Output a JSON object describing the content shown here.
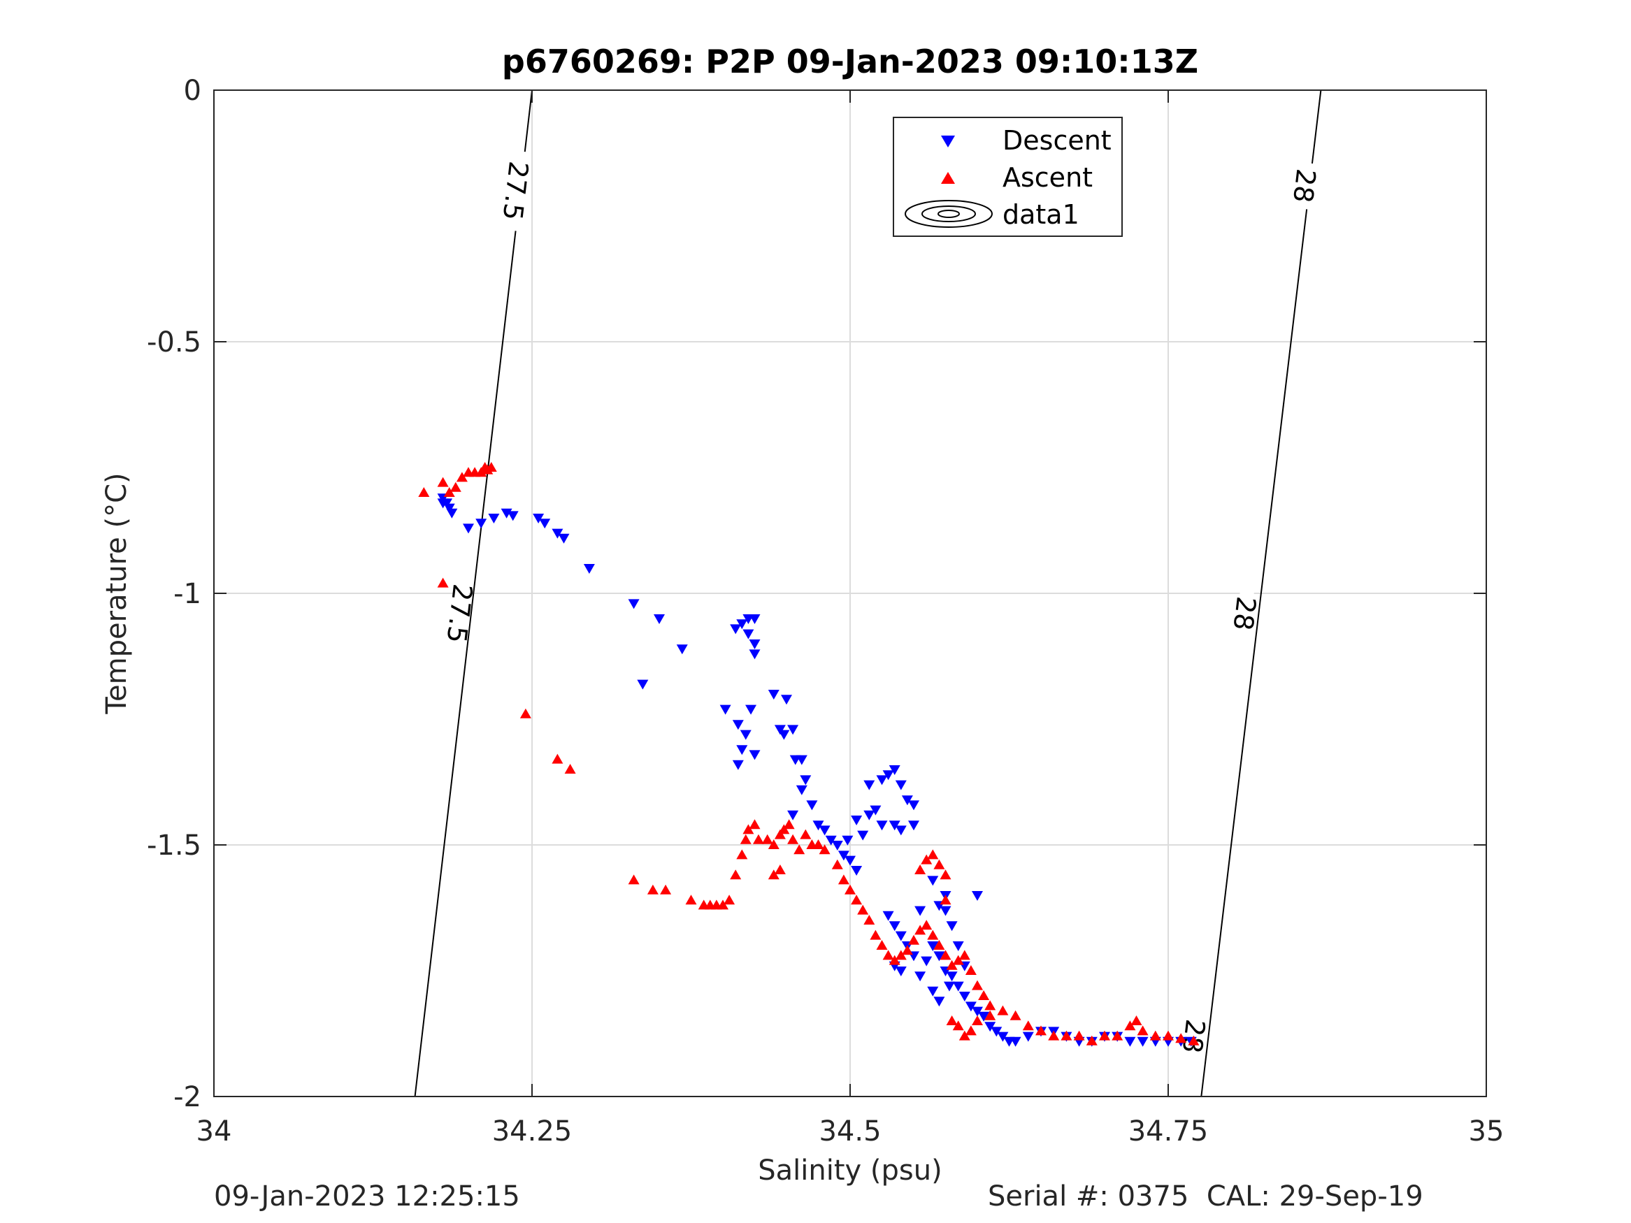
{
  "chart_data": {
    "type": "scatter",
    "title": "p6760269: P2P 09-Jan-2023 09:10:13Z",
    "xlabel": "Salinity (psu)",
    "ylabel": "Temperature (°C)",
    "xlim": [
      34,
      35
    ],
    "ylim": [
      -2,
      0
    ],
    "x_ticks": [
      34,
      34.25,
      34.5,
      34.75,
      35
    ],
    "x_tick_labels": [
      "34",
      "34.25",
      "34.5",
      "34.75",
      "35"
    ],
    "y_ticks": [
      0,
      -0.5,
      -1,
      -1.5,
      -2
    ],
    "y_tick_labels": [
      "0",
      "-0.5",
      "-1",
      "-1.5",
      "-2"
    ],
    "grid": true,
    "legend_position": "top-right",
    "legend_entries": [
      "Descent",
      "Ascent",
      "data1"
    ],
    "colors": {
      "descent": "#0000ff",
      "ascent": "#ff0000",
      "contour": "#000000",
      "grid": "#dcdcdc"
    },
    "contours": [
      {
        "level_label": "27.5",
        "points": [
          [
            34.158,
            -2.0
          ],
          [
            34.25,
            0.0
          ]
        ],
        "label_positions": [
          [
            34.237,
            -0.2
          ],
          [
            34.193,
            -1.04
          ]
        ]
      },
      {
        "level_label": "28",
        "points": [
          [
            34.776,
            -2.0
          ],
          [
            34.87,
            0.0
          ]
        ],
        "label_positions": [
          [
            34.857,
            -0.19
          ],
          [
            34.81,
            -1.04
          ],
          [
            34.77,
            -1.88
          ]
        ]
      }
    ],
    "series": [
      {
        "name": "Descent",
        "marker": "triangle-down",
        "points": [
          [
            34.18,
            -0.81
          ],
          [
            34.183,
            -0.82
          ],
          [
            34.185,
            -0.83
          ],
          [
            34.187,
            -0.84
          ],
          [
            34.18,
            -0.82
          ],
          [
            34.2,
            -0.87
          ],
          [
            34.21,
            -0.86
          ],
          [
            34.22,
            -0.85
          ],
          [
            34.23,
            -0.84
          ],
          [
            34.235,
            -0.845
          ],
          [
            34.255,
            -0.85
          ],
          [
            34.26,
            -0.86
          ],
          [
            34.27,
            -0.88
          ],
          [
            34.275,
            -0.89
          ],
          [
            34.295,
            -0.95
          ],
          [
            34.33,
            -1.02
          ],
          [
            34.35,
            -1.05
          ],
          [
            34.337,
            -1.18
          ],
          [
            34.368,
            -1.11
          ],
          [
            34.41,
            -1.07
          ],
          [
            34.415,
            -1.06
          ],
          [
            34.42,
            -1.05
          ],
          [
            34.425,
            -1.05
          ],
          [
            34.42,
            -1.08
          ],
          [
            34.425,
            -1.1
          ],
          [
            34.425,
            -1.12
          ],
          [
            34.402,
            -1.23
          ],
          [
            34.412,
            -1.26
          ],
          [
            34.418,
            -1.28
          ],
          [
            34.422,
            -1.23
          ],
          [
            34.415,
            -1.31
          ],
          [
            34.425,
            -1.32
          ],
          [
            34.412,
            -1.34
          ],
          [
            34.44,
            -1.2
          ],
          [
            34.45,
            -1.21
          ],
          [
            34.445,
            -1.27
          ],
          [
            34.448,
            -1.28
          ],
          [
            34.455,
            -1.27
          ],
          [
            34.457,
            -1.33
          ],
          [
            34.462,
            -1.33
          ],
          [
            34.462,
            -1.39
          ],
          [
            34.465,
            -1.37
          ],
          [
            34.47,
            -1.42
          ],
          [
            34.455,
            -1.44
          ],
          [
            34.475,
            -1.46
          ],
          [
            34.48,
            -1.47
          ],
          [
            34.49,
            -1.5
          ],
          [
            34.495,
            -1.52
          ],
          [
            34.5,
            -1.53
          ],
          [
            34.505,
            -1.55
          ],
          [
            34.51,
            -1.48
          ],
          [
            34.498,
            -1.49
          ],
          [
            34.485,
            -1.49
          ],
          [
            34.505,
            -1.45
          ],
          [
            34.515,
            -1.44
          ],
          [
            34.52,
            -1.43
          ],
          [
            34.525,
            -1.46
          ],
          [
            34.535,
            -1.46
          ],
          [
            34.54,
            -1.47
          ],
          [
            34.55,
            -1.46
          ],
          [
            34.515,
            -1.38
          ],
          [
            34.525,
            -1.37
          ],
          [
            34.53,
            -1.36
          ],
          [
            34.535,
            -1.35
          ],
          [
            34.54,
            -1.38
          ],
          [
            34.545,
            -1.41
          ],
          [
            34.55,
            -1.42
          ],
          [
            34.53,
            -1.64
          ],
          [
            34.535,
            -1.66
          ],
          [
            34.54,
            -1.68
          ],
          [
            34.545,
            -1.7
          ],
          [
            34.55,
            -1.72
          ],
          [
            34.535,
            -1.74
          ],
          [
            34.54,
            -1.75
          ],
          [
            34.555,
            -1.76
          ],
          [
            34.56,
            -1.73
          ],
          [
            34.565,
            -1.7
          ],
          [
            34.57,
            -1.72
          ],
          [
            34.575,
            -1.75
          ],
          [
            34.58,
            -1.76
          ],
          [
            34.585,
            -1.78
          ],
          [
            34.59,
            -1.8
          ],
          [
            34.595,
            -1.82
          ],
          [
            34.6,
            -1.83
          ],
          [
            34.605,
            -1.84
          ],
          [
            34.61,
            -1.86
          ],
          [
            34.615,
            -1.87
          ],
          [
            34.62,
            -1.88
          ],
          [
            34.625,
            -1.89
          ],
          [
            34.63,
            -1.89
          ],
          [
            34.64,
            -1.88
          ],
          [
            34.65,
            -1.87
          ],
          [
            34.66,
            -1.87
          ],
          [
            34.67,
            -1.88
          ],
          [
            34.68,
            -1.89
          ],
          [
            34.69,
            -1.89
          ],
          [
            34.7,
            -1.88
          ],
          [
            34.71,
            -1.88
          ],
          [
            34.72,
            -1.89
          ],
          [
            34.73,
            -1.89
          ],
          [
            34.74,
            -1.89
          ],
          [
            34.75,
            -1.89
          ],
          [
            34.76,
            -1.89
          ],
          [
            34.768,
            -1.89
          ],
          [
            34.57,
            -1.62
          ],
          [
            34.575,
            -1.63
          ],
          [
            34.58,
            -1.66
          ],
          [
            34.585,
            -1.7
          ],
          [
            34.59,
            -1.74
          ],
          [
            34.6,
            -1.6
          ],
          [
            34.565,
            -1.57
          ],
          [
            34.575,
            -1.6
          ],
          [
            34.555,
            -1.63
          ],
          [
            34.565,
            -1.79
          ],
          [
            34.57,
            -1.81
          ],
          [
            34.578,
            -1.78
          ]
        ]
      },
      {
        "name": "Ascent",
        "marker": "triangle-up",
        "points": [
          [
            34.165,
            -0.8
          ],
          [
            34.18,
            -0.78
          ],
          [
            34.185,
            -0.8
          ],
          [
            34.19,
            -0.79
          ],
          [
            34.195,
            -0.77
          ],
          [
            34.2,
            -0.76
          ],
          [
            34.205,
            -0.76
          ],
          [
            34.21,
            -0.76
          ],
          [
            34.213,
            -0.75
          ],
          [
            34.215,
            -0.755
          ],
          [
            34.218,
            -0.75
          ],
          [
            34.18,
            -0.98
          ],
          [
            34.245,
            -1.24
          ],
          [
            34.27,
            -1.33
          ],
          [
            34.28,
            -1.35
          ],
          [
            34.33,
            -1.57
          ],
          [
            34.345,
            -1.59
          ],
          [
            34.355,
            -1.59
          ],
          [
            34.375,
            -1.61
          ],
          [
            34.385,
            -1.62
          ],
          [
            34.39,
            -1.62
          ],
          [
            34.395,
            -1.62
          ],
          [
            34.4,
            -1.62
          ],
          [
            34.405,
            -1.61
          ],
          [
            34.41,
            -1.56
          ],
          [
            34.415,
            -1.52
          ],
          [
            34.418,
            -1.49
          ],
          [
            34.42,
            -1.47
          ],
          [
            34.425,
            -1.46
          ],
          [
            34.428,
            -1.49
          ],
          [
            34.435,
            -1.49
          ],
          [
            34.44,
            -1.5
          ],
          [
            34.445,
            -1.48
          ],
          [
            34.448,
            -1.47
          ],
          [
            34.452,
            -1.46
          ],
          [
            34.445,
            -1.55
          ],
          [
            34.44,
            -1.56
          ],
          [
            34.455,
            -1.49
          ],
          [
            34.46,
            -1.51
          ],
          [
            34.465,
            -1.48
          ],
          [
            34.47,
            -1.5
          ],
          [
            34.475,
            -1.5
          ],
          [
            34.48,
            -1.51
          ],
          [
            34.49,
            -1.54
          ],
          [
            34.495,
            -1.57
          ],
          [
            34.5,
            -1.59
          ],
          [
            34.505,
            -1.61
          ],
          [
            34.51,
            -1.63
          ],
          [
            34.515,
            -1.65
          ],
          [
            34.52,
            -1.68
          ],
          [
            34.525,
            -1.7
          ],
          [
            34.53,
            -1.72
          ],
          [
            34.535,
            -1.73
          ],
          [
            34.54,
            -1.72
          ],
          [
            34.545,
            -1.71
          ],
          [
            34.55,
            -1.69
          ],
          [
            34.555,
            -1.67
          ],
          [
            34.56,
            -1.66
          ],
          [
            34.565,
            -1.68
          ],
          [
            34.57,
            -1.7
          ],
          [
            34.575,
            -1.72
          ],
          [
            34.58,
            -1.74
          ],
          [
            34.585,
            -1.73
          ],
          [
            34.59,
            -1.72
          ],
          [
            34.595,
            -1.75
          ],
          [
            34.6,
            -1.78
          ],
          [
            34.605,
            -1.8
          ],
          [
            34.61,
            -1.82
          ],
          [
            34.62,
            -1.83
          ],
          [
            34.63,
            -1.84
          ],
          [
            34.64,
            -1.86
          ],
          [
            34.65,
            -1.87
          ],
          [
            34.66,
            -1.88
          ],
          [
            34.67,
            -1.88
          ],
          [
            34.68,
            -1.88
          ],
          [
            34.69,
            -1.89
          ],
          [
            34.7,
            -1.88
          ],
          [
            34.71,
            -1.88
          ],
          [
            34.72,
            -1.86
          ],
          [
            34.725,
            -1.85
          ],
          [
            34.73,
            -1.87
          ],
          [
            34.74,
            -1.88
          ],
          [
            34.75,
            -1.88
          ],
          [
            34.76,
            -1.885
          ],
          [
            34.77,
            -1.89
          ],
          [
            34.56,
            -1.53
          ],
          [
            34.565,
            -1.52
          ],
          [
            34.57,
            -1.54
          ],
          [
            34.575,
            -1.56
          ],
          [
            34.555,
            -1.55
          ],
          [
            34.575,
            -1.61
          ],
          [
            34.58,
            -1.85
          ],
          [
            34.585,
            -1.86
          ],
          [
            34.59,
            -1.88
          ],
          [
            34.595,
            -1.87
          ],
          [
            34.6,
            -1.85
          ],
          [
            34.61,
            -1.84
          ]
        ]
      }
    ]
  },
  "footer": {
    "left": "09-Jan-2023 12:25:15",
    "right": "Serial #: 0375  CAL: 29-Sep-19"
  }
}
